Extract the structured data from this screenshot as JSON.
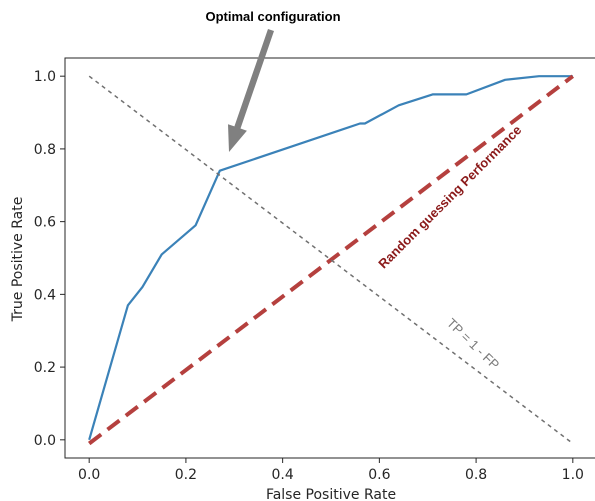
{
  "chart_data": {
    "type": "line",
    "xlabel": "False Positive Rate",
    "ylabel": "True Positive Rate",
    "xlim": [
      -0.05,
      1.05
    ],
    "ylim": [
      -0.05,
      1.05
    ],
    "xticks": [
      "0.0",
      "0.2",
      "0.4",
      "0.6",
      "0.8",
      "1.0"
    ],
    "yticks": [
      "0.0",
      "0.2",
      "0.4",
      "0.6",
      "0.8",
      "1.0"
    ],
    "grid": false,
    "series": [
      {
        "color": "#3b82b8",
        "style": "solid",
        "x": [
          0.0,
          0.08,
          0.11,
          0.15,
          0.22,
          0.27,
          0.56,
          0.57,
          0.64,
          0.71,
          0.78,
          0.86,
          0.93,
          1.0
        ],
        "y": [
          0.0,
          0.37,
          0.42,
          0.51,
          0.59,
          0.74,
          0.87,
          0.87,
          0.92,
          0.95,
          0.95,
          0.99,
          1.0,
          1.0
        ]
      },
      {
        "color": "#b5403e",
        "style": "dashed",
        "x": [
          0.0,
          1.0
        ],
        "y": [
          -0.01,
          1.0
        ]
      },
      {
        "color": "#707070",
        "style": "dotted",
        "x": [
          0.0,
          1.0
        ],
        "y": [
          1.0,
          -0.01
        ]
      }
    ],
    "annotations": {
      "optimal": "Optimal  configuration",
      "random": "Random guessing Performance",
      "diagonal": "TP = 1 - FP"
    },
    "arrow_color": "#808080"
  }
}
